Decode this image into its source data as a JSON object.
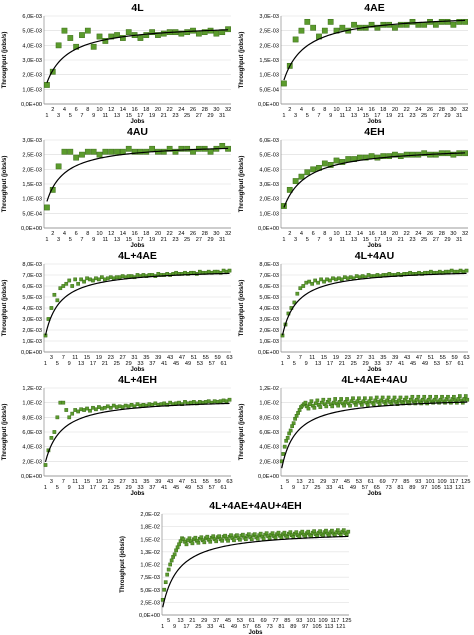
{
  "colors": {
    "marker_fill": "#5b9b2d",
    "marker_edge": "#3b6e18",
    "trend": "#000000",
    "grid": "#d9d9d9",
    "axis": "#8c8c8c"
  },
  "chart_data": [
    {
      "type": "scatter",
      "title": "4L",
      "xlabel": "Jobs",
      "ylabel": "Throughput (jobs/s)",
      "ylim": [
        0,
        0.006
      ],
      "yticks": [
        "0,0E+00",
        "1,0E-03",
        "2,0E-03",
        "3,0E-03",
        "4,0E-03",
        "5,0E-03",
        "6,0E-03"
      ],
      "n": 32,
      "xticks_odd": [
        1,
        3,
        5,
        7,
        9,
        11,
        13,
        15,
        17,
        19,
        21,
        23,
        25,
        27,
        29,
        31
      ],
      "xticks_even": [
        2,
        4,
        6,
        8,
        10,
        12,
        14,
        16,
        18,
        20,
        22,
        24,
        26,
        28,
        30,
        32
      ],
      "grid": true,
      "legend": "none",
      "values": [
        0.0013,
        0.0022,
        0.004,
        0.005,
        0.0045,
        0.0039,
        0.0047,
        0.005,
        0.0039,
        0.0046,
        0.0043,
        0.0046,
        0.0047,
        0.0045,
        0.0049,
        0.0047,
        0.0045,
        0.0047,
        0.0049,
        0.0047,
        0.0048,
        0.0049,
        0.0049,
        0.0048,
        0.0049,
        0.005,
        0.0048,
        0.0049,
        0.005,
        0.0048,
        0.0049,
        0.0051
      ],
      "trend": {
        "a": 0.0055,
        "k": 2.8
      }
    },
    {
      "type": "scatter",
      "title": "4AE",
      "xlabel": "Jobs",
      "ylabel": "Throughput (jobs/s)",
      "ylim": [
        0,
        0.003
      ],
      "yticks": [
        "0,0E+00",
        "5,0E-04",
        "1,0E-03",
        "1,5E-03",
        "2,0E-03",
        "2,5E-03",
        "3,0E-03"
      ],
      "n": 32,
      "xticks_odd": [
        1,
        3,
        5,
        7,
        9,
        11,
        13,
        15,
        17,
        19,
        21,
        23,
        25,
        27,
        29,
        31
      ],
      "xticks_even": [
        2,
        4,
        6,
        8,
        10,
        12,
        14,
        16,
        18,
        20,
        22,
        24,
        26,
        28,
        30,
        32
      ],
      "grid": true,
      "legend": "none",
      "values": [
        0.0007,
        0.0013,
        0.0022,
        0.0025,
        0.0028,
        0.0026,
        0.0023,
        0.0025,
        0.0028,
        0.0025,
        0.0026,
        0.0025,
        0.0027,
        0.0026,
        0.0026,
        0.0027,
        0.0026,
        0.0027,
        0.0027,
        0.0026,
        0.0027,
        0.0027,
        0.0028,
        0.0027,
        0.0027,
        0.0028,
        0.0027,
        0.0028,
        0.0028,
        0.0027,
        0.0028,
        0.0028
      ],
      "trend": {
        "a": 0.0031,
        "k": 2.8
      }
    },
    {
      "type": "scatter",
      "title": "4AU",
      "xlabel": "Jobs",
      "ylabel": "Throughput (jobs/s)",
      "ylim": [
        0,
        0.003
      ],
      "yticks": [
        "0,0E+00",
        "5,0E-04",
        "1,0E-03",
        "1,5E-03",
        "2,0E-03",
        "2,5E-03",
        "3,0E-03"
      ],
      "n": 32,
      "xticks_odd": [
        1,
        3,
        5,
        7,
        9,
        11,
        13,
        15,
        17,
        19,
        21,
        23,
        25,
        27,
        29,
        31
      ],
      "xticks_even": [
        2,
        4,
        6,
        8,
        10,
        12,
        14,
        16,
        18,
        20,
        22,
        24,
        26,
        28,
        30,
        32
      ],
      "grid": true,
      "legend": "none",
      "values": [
        0.0007,
        0.0013,
        0.0021,
        0.0026,
        0.0026,
        0.0024,
        0.0025,
        0.0026,
        0.0026,
        0.0025,
        0.0026,
        0.0026,
        0.0026,
        0.0026,
        0.0027,
        0.0026,
        0.0026,
        0.0026,
        0.0027,
        0.0026,
        0.0026,
        0.0027,
        0.0026,
        0.0027,
        0.0027,
        0.0026,
        0.0027,
        0.0027,
        0.0026,
        0.0027,
        0.0028,
        0.0027
      ],
      "trend": {
        "a": 0.0029,
        "k": 2.2
      }
    },
    {
      "type": "scatter",
      "title": "4EH",
      "xlabel": "Jobs",
      "ylabel": "Throughput (jobs/s)",
      "ylim": [
        0,
        0.006
      ],
      "yticks": [
        "0,0E+00",
        "1,0E-03",
        "2,0E-03",
        "3,0E-03",
        "4,0E-03",
        "5,0E-03",
        "6,0E-03"
      ],
      "n": 32,
      "xticks_odd": [
        1,
        3,
        5,
        7,
        9,
        11,
        13,
        15,
        17,
        19,
        21,
        23,
        25,
        27,
        29,
        31
      ],
      "xticks_even": [
        2,
        4,
        6,
        8,
        10,
        12,
        14,
        16,
        18,
        20,
        22,
        24,
        26,
        28,
        30,
        32
      ],
      "grid": true,
      "legend": "none",
      "values": [
        0.0015,
        0.0026,
        0.0032,
        0.0035,
        0.0038,
        0.004,
        0.0041,
        0.0044,
        0.0043,
        0.0046,
        0.0045,
        0.0047,
        0.0047,
        0.0048,
        0.0048,
        0.0049,
        0.0048,
        0.0049,
        0.0049,
        0.005,
        0.0049,
        0.005,
        0.005,
        0.005,
        0.0051,
        0.005,
        0.005,
        0.0051,
        0.0051,
        0.005,
        0.0051,
        0.0051
      ],
      "trend": {
        "a": 0.0056,
        "k": 3.0
      }
    },
    {
      "type": "scatter",
      "title": "4L+4AE",
      "xlabel": "Jobs",
      "ylabel": "Throughput (jobs/s)",
      "ylim": [
        0,
        0.008
      ],
      "yticks": [
        "0,0E+00",
        "1,0E-03",
        "2,0E-03",
        "3,0E-03",
        "4,0E-03",
        "5,0E-03",
        "6,0E-03",
        "7,0E-03",
        "8,0E-03"
      ],
      "n": 63,
      "xticks_odd": [
        1,
        5,
        9,
        13,
        17,
        21,
        25,
        29,
        33,
        37,
        41,
        45,
        49,
        53,
        57,
        61
      ],
      "xticks_even": [
        3,
        7,
        11,
        15,
        19,
        23,
        27,
        31,
        35,
        39,
        43,
        47,
        51,
        55,
        59,
        63
      ],
      "grid": true,
      "legend": "none",
      "values": [
        0.0015,
        0.003,
        0.004,
        0.0052,
        0.0047,
        0.0058,
        0.006,
        0.0062,
        0.0065,
        0.006,
        0.0066,
        0.0062,
        0.0066,
        0.0064,
        0.0067,
        0.0066,
        0.0065,
        0.0067,
        0.0066,
        0.0068,
        0.0066,
        0.0067,
        0.0068,
        0.0067,
        0.0068,
        0.0068,
        0.0069,
        0.0068,
        0.0069,
        0.0069,
        0.0068,
        0.007,
        0.0069,
        0.007,
        0.0069,
        0.007,
        0.007,
        0.0069,
        0.0071,
        0.007,
        0.007,
        0.0071,
        0.007,
        0.0071,
        0.0072,
        0.0071,
        0.0071,
        0.0072,
        0.0071,
        0.0072,
        0.0072,
        0.0071,
        0.0073,
        0.0072,
        0.0072,
        0.0073,
        0.0072,
        0.0073,
        0.0073,
        0.0072,
        0.0074,
        0.0073,
        0.0074
      ],
      "trend": {
        "a": 0.0076,
        "k": 4.0
      }
    },
    {
      "type": "scatter",
      "title": "4L+4AU",
      "xlabel": "Jobs",
      "ylabel": "Throughput (jobs/s)",
      "ylim": [
        0,
        0.008
      ],
      "yticks": [
        "0,0E+00",
        "1,0E-03",
        "2,0E-03",
        "3,0E-03",
        "4,0E-03",
        "5,0E-03",
        "6,0E-03",
        "7,0E-03",
        "8,0E-03"
      ],
      "n": 63,
      "xticks_odd": [
        1,
        5,
        9,
        13,
        17,
        21,
        25,
        29,
        33,
        37,
        41,
        45,
        49,
        53,
        57,
        61
      ],
      "xticks_even": [
        3,
        7,
        11,
        15,
        19,
        23,
        27,
        31,
        35,
        39,
        43,
        47,
        51,
        55,
        59,
        63
      ],
      "grid": true,
      "legend": "none",
      "values": [
        0.0015,
        0.0025,
        0.0035,
        0.004,
        0.0045,
        0.0053,
        0.0058,
        0.006,
        0.0063,
        0.0064,
        0.0062,
        0.0065,
        0.0063,
        0.0066,
        0.0064,
        0.0066,
        0.0065,
        0.0067,
        0.0066,
        0.0067,
        0.0066,
        0.0068,
        0.0067,
        0.0068,
        0.0067,
        0.0069,
        0.0068,
        0.0069,
        0.0068,
        0.007,
        0.0069,
        0.0069,
        0.007,
        0.0069,
        0.007,
        0.007,
        0.0071,
        0.007,
        0.007,
        0.0071,
        0.007,
        0.0071,
        0.0071,
        0.0072,
        0.0071,
        0.0071,
        0.0072,
        0.0071,
        0.0072,
        0.0072,
        0.0073,
        0.0072,
        0.0072,
        0.0073,
        0.0072,
        0.0073,
        0.0073,
        0.0074,
        0.0073,
        0.0073,
        0.0074,
        0.0073,
        0.0074
      ],
      "trend": {
        "a": 0.0076,
        "k": 4.0
      }
    },
    {
      "type": "scatter",
      "title": "4L+4EH",
      "xlabel": "Jobs",
      "ylabel": "Throughput (jobs/s)",
      "ylim": [
        0,
        0.012
      ],
      "yticks": [
        "0,0E+00",
        "2,0E-03",
        "4,0E-03",
        "6,0E-03",
        "8,0E-03",
        "1,0E-02",
        "1,2E-02"
      ],
      "n": 63,
      "xticks_odd": [
        1,
        5,
        9,
        13,
        17,
        21,
        25,
        29,
        33,
        37,
        41,
        45,
        49,
        53,
        57,
        61
      ],
      "xticks_even": [
        3,
        7,
        11,
        15,
        19,
        23,
        27,
        31,
        35,
        39,
        43,
        47,
        51,
        55,
        59,
        63
      ],
      "grid": true,
      "legend": "none",
      "values": [
        0.0015,
        0.0035,
        0.0052,
        0.006,
        0.008,
        0.01,
        0.01,
        0.009,
        0.008,
        0.0085,
        0.009,
        0.0088,
        0.0091,
        0.009,
        0.0092,
        0.0089,
        0.0093,
        0.0091,
        0.0094,
        0.0092,
        0.0093,
        0.0095,
        0.0093,
        0.0096,
        0.0094,
        0.0095,
        0.0094,
        0.0096,
        0.0095,
        0.0097,
        0.0095,
        0.0098,
        0.0096,
        0.0097,
        0.0096,
        0.0098,
        0.0097,
        0.0099,
        0.0097,
        0.0098,
        0.0099,
        0.0097,
        0.01,
        0.0098,
        0.0099,
        0.01,
        0.0098,
        0.0101,
        0.0099,
        0.01,
        0.0101,
        0.0099,
        0.0101,
        0.01,
        0.0101,
        0.0102,
        0.01,
        0.0102,
        0.0101,
        0.0102,
        0.0103,
        0.0102,
        0.0104
      ],
      "trend": {
        "a": 0.0106,
        "k": 4.5
      }
    },
    {
      "type": "scatter",
      "title": "4L+4AE+4AU",
      "xlabel": "Jobs",
      "ylabel": "Throughput (jobs/s)",
      "ylim": [
        0,
        0.012
      ],
      "yticks": [
        "0,0E+00",
        "2,0E-03",
        "4,0E-03",
        "6,0E-03",
        "8,0E-03",
        "1,0E-02",
        "1,2E-02"
      ],
      "n": 126,
      "xticks_odd": [
        1,
        9,
        17,
        25,
        33,
        41,
        49,
        57,
        65,
        73,
        81,
        89,
        97,
        105,
        113,
        121
      ],
      "xticks_even": [
        5,
        13,
        21,
        29,
        37,
        45,
        53,
        61,
        69,
        77,
        85,
        93,
        101,
        109,
        117,
        125
      ],
      "grid": true,
      "legend": "none",
      "values": [
        0.002,
        0.003,
        0.004,
        0.0048,
        0.0052,
        0.0058,
        0.0062,
        0.0068,
        0.0072,
        0.0078,
        0.0082,
        0.0086,
        0.009,
        0.0094,
        0.0096,
        0.0098,
        0.01,
        0.0095,
        0.0092,
        0.0098,
        0.0102,
        0.0096,
        0.0093,
        0.0099,
        0.0103,
        0.0097,
        0.0094,
        0.01,
        0.0104,
        0.0098,
        0.0095,
        0.0101,
        0.0104,
        0.0098,
        0.0095,
        0.01,
        0.0105,
        0.0099,
        0.0096,
        0.0101,
        0.0105,
        0.0099,
        0.0096,
        0.0101,
        0.0105,
        0.0099,
        0.0096,
        0.0102,
        0.0106,
        0.01,
        0.0097,
        0.0102,
        0.0106,
        0.01,
        0.0097,
        0.0102,
        0.0106,
        0.01,
        0.0097,
        0.0102,
        0.0106,
        0.01,
        0.0098,
        0.0103,
        0.0107,
        0.0101,
        0.0098,
        0.0103,
        0.0107,
        0.0101,
        0.0098,
        0.0103,
        0.0107,
        0.0101,
        0.0098,
        0.0103,
        0.0107,
        0.0101,
        0.0098,
        0.0103,
        0.0107,
        0.0101,
        0.0099,
        0.0104,
        0.0107,
        0.0101,
        0.0099,
        0.0104,
        0.0108,
        0.0102,
        0.0099,
        0.0104,
        0.0108,
        0.0102,
        0.0099,
        0.0104,
        0.0108,
        0.0102,
        0.0099,
        0.0104,
        0.0108,
        0.0102,
        0.01,
        0.0104,
        0.0108,
        0.0102,
        0.01,
        0.0104,
        0.0108,
        0.0102,
        0.01,
        0.0105,
        0.0108,
        0.0102,
        0.01,
        0.0105,
        0.0108,
        0.0103,
        0.01,
        0.0105,
        0.0109,
        0.0103,
        0.01,
        0.0105,
        0.0109,
        0.0104
      ],
      "trend": {
        "a": 0.0108,
        "k": 9.0
      }
    },
    {
      "type": "scatter",
      "title": "4L+4AE+4AU+4EH",
      "xlabel": "Jobs",
      "ylabel": "Throughput (jobs/s)",
      "ylim": [
        0,
        0.02
      ],
      "yticks": [
        "0,0E+00",
        "2,5E-03",
        "5,0E-03",
        "7,5E-03",
        "1,0E-02",
        "1,3E-02",
        "1,5E-02",
        "1,8E-02",
        "2,0E-02"
      ],
      "n": 126,
      "xticks_odd": [
        1,
        9,
        17,
        25,
        33,
        41,
        49,
        57,
        65,
        73,
        81,
        89,
        97,
        105,
        113,
        121
      ],
      "xticks_even": [
        5,
        13,
        21,
        29,
        37,
        45,
        53,
        61,
        69,
        77,
        85,
        93,
        101,
        109,
        117,
        125
      ],
      "grid": true,
      "legend": "none",
      "values": [
        0.003,
        0.005,
        0.0065,
        0.008,
        0.009,
        0.01,
        0.0108,
        0.0115,
        0.012,
        0.0128,
        0.0134,
        0.014,
        0.0146,
        0.0152,
        0.015,
        0.0145,
        0.014,
        0.0148,
        0.0152,
        0.0146,
        0.0142,
        0.015,
        0.0153,
        0.0147,
        0.0143,
        0.0151,
        0.0154,
        0.0148,
        0.0144,
        0.0152,
        0.0155,
        0.0149,
        0.0145,
        0.0153,
        0.0156,
        0.015,
        0.0146,
        0.0154,
        0.0156,
        0.015,
        0.0147,
        0.0155,
        0.0157,
        0.0151,
        0.0147,
        0.0155,
        0.0158,
        0.0152,
        0.0148,
        0.0156,
        0.0158,
        0.0152,
        0.0149,
        0.0157,
        0.0159,
        0.0153,
        0.015,
        0.0157,
        0.016,
        0.0154,
        0.015,
        0.0158,
        0.016,
        0.0154,
        0.0151,
        0.0158,
        0.0161,
        0.0155,
        0.0151,
        0.0159,
        0.0162,
        0.0156,
        0.0152,
        0.0159,
        0.0162,
        0.0156,
        0.0153,
        0.016,
        0.0163,
        0.0157,
        0.0153,
        0.016,
        0.0163,
        0.0157,
        0.0154,
        0.0161,
        0.0164,
        0.0158,
        0.0154,
        0.0161,
        0.0164,
        0.0158,
        0.0155,
        0.0162,
        0.0165,
        0.0159,
        0.0155,
        0.0162,
        0.0165,
        0.0159,
        0.0156,
        0.0163,
        0.0166,
        0.016,
        0.0156,
        0.0163,
        0.0166,
        0.016,
        0.0157,
        0.0164,
        0.0167,
        0.0161,
        0.0157,
        0.0164,
        0.0167,
        0.0161,
        0.0158,
        0.0164,
        0.0168,
        0.0162,
        0.0158,
        0.0165,
        0.0168,
        0.0162,
        0.0159,
        0.0165
      ],
      "trend": {
        "a": 0.0168,
        "k": 10.0
      }
    }
  ]
}
